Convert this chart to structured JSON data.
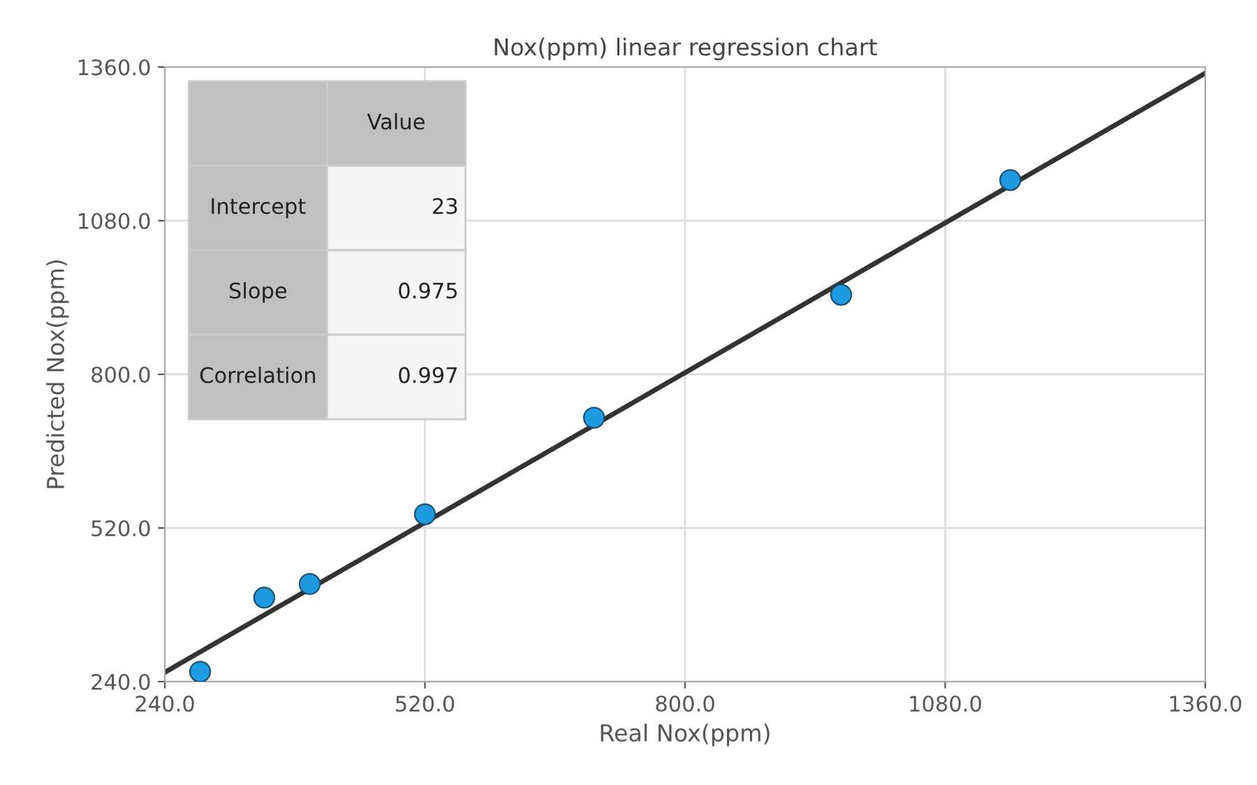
{
  "chart_data": {
    "type": "scatter",
    "title": "Nox(ppm) linear regression chart",
    "xlabel": "Real Nox(ppm)",
    "ylabel": "Predicted Nox(ppm)",
    "series": [
      {
        "color": "#1e9be0",
        "marker": "circle",
        "x": [
          278,
          347,
          396,
          520,
          702,
          968,
          1150
        ],
        "values": [
          258,
          393,
          418,
          545,
          721,
          945,
          1154
        ]
      },
      {
        "type": "line",
        "color": "#333333",
        "x": [
          240,
          1360
        ],
        "values": [
          257,
          1349
        ]
      }
    ],
    "xlim": [
      240,
      1360
    ],
    "ylim": [
      240,
      1360
    ],
    "xticks": [
      {
        "value": 240,
        "label": "240.0"
      },
      {
        "value": 520,
        "label": "520.0"
      },
      {
        "value": 800,
        "label": "800.0"
      },
      {
        "value": 1080,
        "label": "1080.0"
      },
      {
        "value": 1360,
        "label": "1360.0"
      }
    ],
    "yticks": [
      {
        "value": 240,
        "label": "240.0"
      },
      {
        "value": 520,
        "label": "520.0"
      },
      {
        "value": 800,
        "label": "800.0"
      },
      {
        "value": 1080,
        "label": "1080.0"
      },
      {
        "value": 1360,
        "label": "1360.0"
      }
    ],
    "grid": true,
    "annotations": [
      "Value",
      "Intercept",
      "23",
      "Slope",
      "0.975",
      "Correlation",
      "0.997"
    ]
  }
}
